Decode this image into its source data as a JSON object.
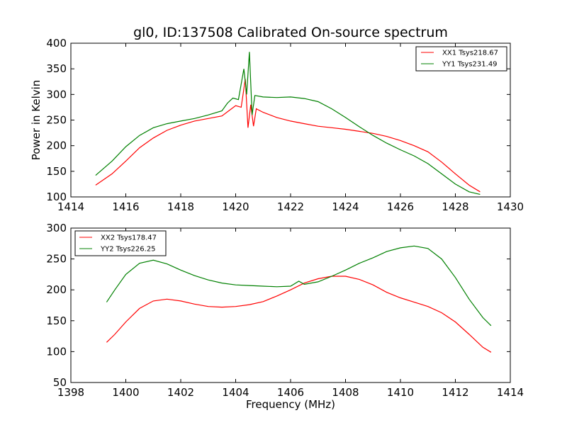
{
  "chart_data": [
    {
      "type": "line",
      "title": "gl0, ID:137508 Calibrated On-source spectrum",
      "xlabel": "",
      "ylabel": "Power in Kelvin",
      "xlim": [
        1414,
        1430
      ],
      "ylim": [
        100,
        400
      ],
      "xticks": [
        "1414",
        "1416",
        "1418",
        "1420",
        "1422",
        "1424",
        "1426",
        "1428",
        "1430"
      ],
      "yticks": [
        "100",
        "150",
        "200",
        "250",
        "300",
        "350",
        "400"
      ],
      "legend_position": "top-right",
      "series": [
        {
          "name": "XX1 Tsys218.67",
          "color": "#ff0000",
          "x": [
            1414.9,
            1415.5,
            1416.0,
            1416.5,
            1417.0,
            1417.5,
            1418.0,
            1418.5,
            1419.0,
            1419.5,
            1419.8,
            1420.0,
            1420.2,
            1420.35,
            1420.45,
            1420.55,
            1420.65,
            1420.75,
            1421.0,
            1421.5,
            1422.0,
            1422.5,
            1423.0,
            1423.5,
            1424.0,
            1424.5,
            1425.0,
            1425.5,
            1426.0,
            1426.5,
            1427.0,
            1427.5,
            1428.0,
            1428.5,
            1428.9
          ],
          "y": [
            123,
            145,
            170,
            196,
            215,
            230,
            240,
            248,
            253,
            258,
            270,
            278,
            275,
            330,
            235,
            280,
            238,
            272,
            265,
            255,
            248,
            243,
            238,
            235,
            232,
            228,
            224,
            218,
            210,
            200,
            188,
            168,
            145,
            123,
            110
          ]
        },
        {
          "name": "YY1 Tsys231.49",
          "color": "#008000",
          "x": [
            1414.9,
            1415.5,
            1416.0,
            1416.5,
            1417.0,
            1417.5,
            1418.0,
            1418.5,
            1419.0,
            1419.5,
            1419.7,
            1419.9,
            1420.1,
            1420.3,
            1420.4,
            1420.5,
            1420.6,
            1420.7,
            1421.0,
            1421.5,
            1422.0,
            1422.5,
            1423.0,
            1423.5,
            1424.0,
            1424.5,
            1425.0,
            1425.5,
            1426.0,
            1426.5,
            1427.0,
            1427.5,
            1428.0,
            1428.5,
            1428.9
          ],
          "y": [
            142,
            170,
            198,
            220,
            235,
            243,
            248,
            253,
            260,
            268,
            283,
            293,
            290,
            350,
            300,
            383,
            260,
            298,
            295,
            294,
            295,
            292,
            286,
            272,
            255,
            237,
            220,
            205,
            192,
            180,
            165,
            145,
            125,
            110,
            105
          ]
        }
      ]
    },
    {
      "type": "line",
      "title": "",
      "xlabel": "Frequency (MHz)",
      "ylabel": "",
      "xlim": [
        1398,
        1414
      ],
      "ylim": [
        50,
        300
      ],
      "xticks": [
        "1398",
        "1400",
        "1402",
        "1404",
        "1406",
        "1408",
        "1410",
        "1412",
        "1414"
      ],
      "yticks": [
        "50",
        "100",
        "150",
        "200",
        "250",
        "300"
      ],
      "legend_position": "top-left",
      "series": [
        {
          "name": "XX2 Tsys178.47",
          "color": "#ff0000",
          "x": [
            1399.3,
            1399.6,
            1400.0,
            1400.5,
            1401.0,
            1401.5,
            1402.0,
            1402.5,
            1403.0,
            1403.5,
            1404.0,
            1404.5,
            1405.0,
            1405.5,
            1406.0,
            1406.5,
            1407.0,
            1407.5,
            1408.0,
            1408.5,
            1409.0,
            1409.5,
            1410.0,
            1410.5,
            1411.0,
            1411.5,
            1412.0,
            1412.5,
            1413.0,
            1413.3
          ],
          "y": [
            115,
            128,
            148,
            170,
            182,
            185,
            182,
            177,
            173,
            172,
            173,
            176,
            181,
            190,
            200,
            211,
            218,
            222,
            222,
            217,
            208,
            196,
            187,
            180,
            173,
            163,
            148,
            128,
            107,
            99
          ]
        },
        {
          "name": "YY2 Tsys226.25",
          "color": "#008000",
          "x": [
            1399.3,
            1399.6,
            1400.0,
            1400.5,
            1401.0,
            1401.5,
            1402.0,
            1402.5,
            1403.0,
            1403.5,
            1404.0,
            1404.5,
            1405.0,
            1405.5,
            1406.0,
            1406.3,
            1406.5,
            1407.0,
            1407.5,
            1408.0,
            1408.5,
            1409.0,
            1409.5,
            1410.0,
            1410.5,
            1411.0,
            1411.5,
            1412.0,
            1412.5,
            1413.0,
            1413.3
          ],
          "y": [
            180,
            200,
            225,
            243,
            248,
            242,
            232,
            223,
            216,
            211,
            208,
            207,
            206,
            205,
            206,
            214,
            209,
            213,
            222,
            232,
            243,
            252,
            262,
            268,
            271,
            267,
            250,
            220,
            185,
            155,
            142
          ]
        }
      ]
    }
  ]
}
